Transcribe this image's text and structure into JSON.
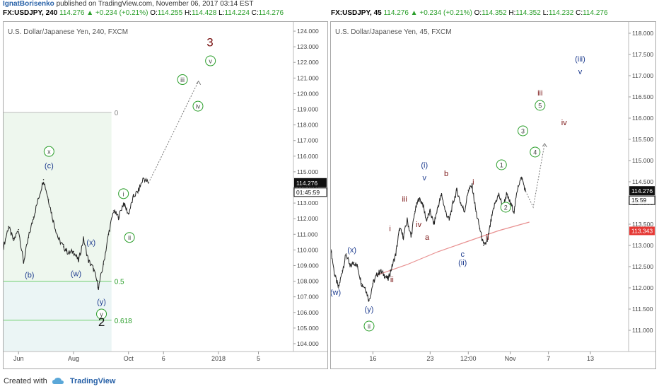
{
  "header": {
    "user": "IgnatBorisenko",
    "published": "published on TradingView.com, November 06, 2017 03:14 EST"
  },
  "footer": {
    "created": "Created with",
    "brand": "TradingView"
  },
  "colors": {
    "green": "#2a9e2a",
    "blue": "#1f3d8f",
    "darkred": "#7a1414",
    "fib_fill": "#eef7ee",
    "fib_line": "#6fcf6f",
    "blue_fill": "#e9f3fa",
    "ma": "#e89090"
  },
  "charts": [
    {
      "symbol_line": "FX:USDJPY, 240",
      "last": "114.276",
      "change": "+0.234 (+0.21%)",
      "o": "114.255",
      "h": "114.428",
      "l": "114.224",
      "c": "114.276",
      "label_o": "O:",
      "label_h": "H:",
      "label_l": "L:",
      "label_c": "C:",
      "title": "U.S. Dollar/Japanese Yen, 240, FXCM",
      "price_tag": "114.276",
      "timer": "01:45:59",
      "fib_labels": {
        "zero": "0",
        "half": "0.5",
        "golden": "0.618"
      }
    },
    {
      "symbol_line": "FX:USDJPY, 45",
      "last": "114.276",
      "change": "+0.234 (+0.21%)",
      "o": "114.352",
      "h": "114.352",
      "l": "114.232",
      "c": "114.276",
      "label_o": "O:",
      "label_h": "H:",
      "label_l": "L:",
      "label_c": "C:",
      "title": "U.S. Dollar/Japanese Yen, 45, FXCM",
      "price_tag": "114.276",
      "timer": "15:59",
      "ma_tag": "113.343"
    }
  ],
  "chart_data": [
    {
      "type": "line",
      "ylim": [
        103.5,
        124.5
      ],
      "yticks": [
        124.0,
        123.0,
        122.0,
        121.0,
        120.0,
        119.0,
        118.0,
        117.0,
        116.0,
        115.0,
        114.0,
        113.0,
        112.0,
        111.0,
        110.0,
        109.0,
        108.0,
        107.0,
        106.0,
        105.0,
        104.0
      ],
      "xticks": [
        "Jun",
        "Aug",
        "Oct",
        "6",
        "2018",
        "5"
      ],
      "xtick_index": [
        3,
        14,
        25,
        32,
        43,
        51
      ],
      "x_total": 58,
      "price_points": [
        [
          0,
          110.2
        ],
        [
          1,
          111.5
        ],
        [
          2,
          110.6
        ],
        [
          3,
          111.3
        ],
        [
          4,
          109.2
        ],
        [
          5,
          110.8
        ],
        [
          6,
          112.1
        ],
        [
          7,
          113.3
        ],
        [
          8,
          114.5
        ],
        [
          9,
          113.2
        ],
        [
          10,
          111.8
        ],
        [
          11,
          110.7
        ],
        [
          12,
          110.2
        ],
        [
          13,
          109.8
        ],
        [
          14,
          109.9
        ],
        [
          15,
          109.3
        ],
        [
          16,
          110.7
        ],
        [
          17,
          109.3
        ],
        [
          18,
          108.8
        ],
        [
          19,
          107.6
        ],
        [
          20,
          109.1
        ],
        [
          21,
          111.0
        ],
        [
          22,
          112.5
        ],
        [
          23,
          112.1
        ],
        [
          24,
          113.0
        ],
        [
          25,
          112.3
        ],
        [
          26,
          113.4
        ],
        [
          27,
          113.8
        ],
        [
          28,
          114.6
        ],
        [
          29,
          114.28
        ]
      ],
      "projection": [
        [
          29,
          114.28
        ],
        [
          39,
          120.8
        ]
      ],
      "fib_levels": [
        {
          "label": "0",
          "value": 118.8
        },
        {
          "label": "0.5",
          "value": 108.0
        },
        {
          "label": "0.618",
          "value": 105.5
        }
      ],
      "waves": [
        {
          "text": "x",
          "x": 9.1,
          "y": 116.3,
          "style": "circle"
        },
        {
          "text": "(c)",
          "x": 9.1,
          "y": 115.4,
          "style": "plain",
          "color": "blue"
        },
        {
          "text": "(b)",
          "x": 5.2,
          "y": 108.4,
          "style": "plain",
          "color": "blue"
        },
        {
          "text": "(w)",
          "x": 14.5,
          "y": 108.5,
          "style": "plain",
          "color": "blue"
        },
        {
          "text": "(x)",
          "x": 17.5,
          "y": 110.5,
          "style": "plain",
          "color": "blue"
        },
        {
          "text": "(y)",
          "x": 19.6,
          "y": 106.7,
          "style": "plain",
          "color": "blue"
        },
        {
          "text": "y",
          "x": 19.6,
          "y": 105.9,
          "style": "circle"
        },
        {
          "text": "2",
          "x": 19.6,
          "y": 105.4,
          "style": "big"
        },
        {
          "text": "i",
          "x": 24.0,
          "y": 113.6,
          "style": "circle"
        },
        {
          "text": "ii",
          "x": 25.2,
          "y": 110.8,
          "style": "circle"
        },
        {
          "text": "iii",
          "x": 35.8,
          "y": 120.9,
          "style": "circle"
        },
        {
          "text": "iv",
          "x": 38.9,
          "y": 119.2,
          "style": "circle"
        },
        {
          "text": "v",
          "x": 41.4,
          "y": 122.1,
          "style": "circle"
        },
        {
          "text": "3",
          "x": 41.3,
          "y": 123.3,
          "style": "big-red"
        }
      ]
    },
    {
      "type": "line",
      "ylim": [
        110.5,
        118.2
      ],
      "yticks": [
        118.0,
        117.5,
        117.0,
        116.5,
        116.0,
        115.5,
        115.0,
        114.5,
        114.0,
        113.5,
        113.0,
        112.5,
        112.0,
        111.5,
        111.0
      ],
      "xticks": [
        "16",
        "23",
        "12:00",
        "Nov",
        "7",
        "13"
      ],
      "xtick_index": [
        11,
        26,
        36,
        47,
        57,
        68
      ],
      "x_total": 78,
      "price_points": [
        [
          0,
          112.9
        ],
        [
          1,
          112.3
        ],
        [
          2,
          112.0
        ],
        [
          3,
          112.4
        ],
        [
          4,
          112.8
        ],
        [
          5,
          112.5
        ],
        [
          6,
          112.6
        ],
        [
          7,
          112.5
        ],
        [
          8,
          112.1
        ],
        [
          9,
          112.0
        ],
        [
          10,
          111.7
        ],
        [
          11,
          112.1
        ],
        [
          12,
          112.3
        ],
        [
          13,
          112.4
        ],
        [
          14,
          112.3
        ],
        [
          15,
          112.2
        ],
        [
          16,
          112.5
        ],
        [
          17,
          112.8
        ],
        [
          18,
          113.4
        ],
        [
          19,
          113.2
        ],
        [
          20,
          113.6
        ],
        [
          21,
          113.2
        ],
        [
          22,
          113.8
        ],
        [
          23,
          114.1
        ],
        [
          24,
          114.0
        ],
        [
          25,
          113.6
        ],
        [
          26,
          113.8
        ],
        [
          27,
          113.5
        ],
        [
          28,
          113.9
        ],
        [
          29,
          114.2
        ],
        [
          30,
          113.8
        ],
        [
          31,
          113.6
        ],
        [
          32,
          114.0
        ],
        [
          33,
          114.3
        ],
        [
          34,
          114.0
        ],
        [
          35,
          113.8
        ],
        [
          36,
          114.3
        ],
        [
          37,
          114.4
        ],
        [
          38,
          113.8
        ],
        [
          39,
          113.4
        ],
        [
          40,
          113.0
        ],
        [
          41,
          113.1
        ],
        [
          42,
          113.6
        ],
        [
          43,
          114.0
        ],
        [
          44,
          114.2
        ],
        [
          45,
          113.9
        ],
        [
          46,
          114.2
        ],
        [
          47,
          114.0
        ],
        [
          48,
          113.8
        ],
        [
          49,
          114.4
        ],
        [
          50,
          114.6
        ],
        [
          51,
          114.28
        ]
      ],
      "projection": [
        [
          51,
          114.28
        ],
        [
          53,
          113.9
        ],
        [
          56,
          115.4
        ]
      ],
      "moving_average": [
        [
          12,
          112.3
        ],
        [
          20,
          112.55
        ],
        [
          28,
          112.85
        ],
        [
          36,
          113.1
        ],
        [
          44,
          113.35
        ],
        [
          52,
          113.55
        ]
      ],
      "waves": [
        {
          "text": "(w)",
          "x": 1.2,
          "y": 111.9,
          "style": "plain",
          "color": "blue"
        },
        {
          "text": "(x)",
          "x": 5.5,
          "y": 112.9,
          "style": "plain",
          "color": "blue"
        },
        {
          "text": "(y)",
          "x": 10.0,
          "y": 111.5,
          "style": "plain",
          "color": "blue"
        },
        {
          "text": "ii",
          "x": 10.0,
          "y": 111.1,
          "style": "circle"
        },
        {
          "text": "i",
          "x": 15.5,
          "y": 113.4,
          "style": "plain",
          "color": "darkred"
        },
        {
          "text": "ii",
          "x": 16.0,
          "y": 112.2,
          "style": "plain",
          "color": "darkred"
        },
        {
          "text": "iii",
          "x": 19.3,
          "y": 114.1,
          "style": "plain",
          "color": "darkred"
        },
        {
          "text": "iv",
          "x": 23.0,
          "y": 113.5,
          "style": "plain",
          "color": "darkred"
        },
        {
          "text": "a",
          "x": 25.2,
          "y": 113.2,
          "style": "plain",
          "color": "darkred"
        },
        {
          "text": "(i)",
          "x": 24.5,
          "y": 114.9,
          "style": "plain",
          "color": "blue"
        },
        {
          "text": "v",
          "x": 24.5,
          "y": 114.6,
          "style": "plain",
          "color": "blue"
        },
        {
          "text": "b",
          "x": 30.2,
          "y": 114.7,
          "style": "plain",
          "color": "darkred"
        },
        {
          "text": "c",
          "x": 34.5,
          "y": 112.8,
          "style": "plain",
          "color": "blue"
        },
        {
          "text": "(ii)",
          "x": 34.5,
          "y": 112.6,
          "style": "plain",
          "color": "blue"
        },
        {
          "text": "i",
          "x": 37.3,
          "y": 114.5,
          "style": "plain",
          "color": "darkred"
        },
        {
          "text": "ii",
          "x": 41.0,
          "y": 113.2,
          "style": "plain",
          "color": "darkred"
        },
        {
          "text": "1",
          "x": 44.7,
          "y": 114.9,
          "style": "circle"
        },
        {
          "text": "2",
          "x": 45.8,
          "y": 113.9,
          "style": "circle"
        },
        {
          "text": "3",
          "x": 50.3,
          "y": 115.7,
          "style": "circle"
        },
        {
          "text": "4",
          "x": 53.5,
          "y": 115.2,
          "style": "circle"
        },
        {
          "text": "iii",
          "x": 54.8,
          "y": 116.6,
          "style": "plain",
          "color": "darkred"
        },
        {
          "text": "5",
          "x": 54.8,
          "y": 116.3,
          "style": "circle"
        },
        {
          "text": "iv",
          "x": 61.1,
          "y": 115.9,
          "style": "plain",
          "color": "darkred"
        },
        {
          "text": "(iii)",
          "x": 65.3,
          "y": 117.4,
          "style": "plain",
          "color": "blue"
        },
        {
          "text": "v",
          "x": 65.3,
          "y": 117.1,
          "style": "plain",
          "color": "blue"
        }
      ]
    }
  ]
}
